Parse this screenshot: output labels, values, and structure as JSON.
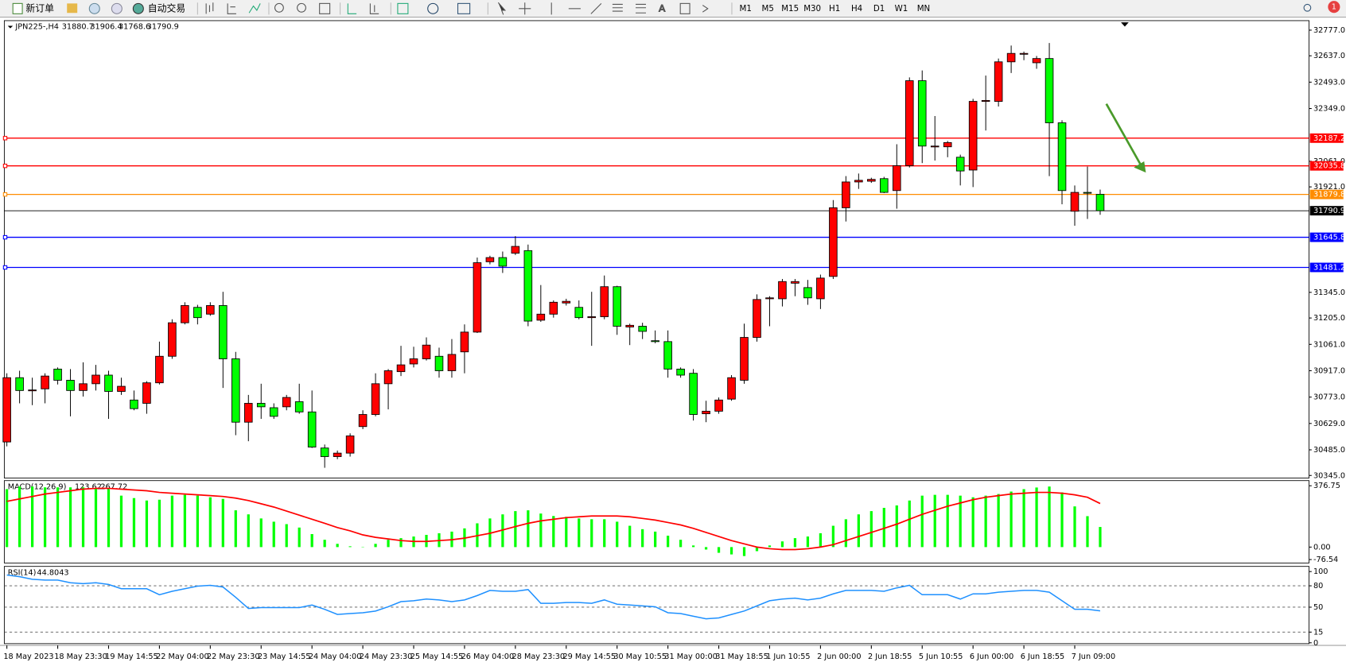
{
  "toolbar": {
    "new_order": "新订单",
    "auto_trade": "自动交易",
    "timeframes": [
      "M1",
      "M5",
      "M15",
      "M30",
      "H1",
      "H4",
      "D1",
      "W1",
      "MN"
    ],
    "notifications": 1
  },
  "chart_data": [
    {
      "type": "candlestick",
      "symbol": "JPN225-,H4",
      "categories": [
        "18 May 2023",
        null,
        null,
        null,
        "18 May 23:30",
        null,
        null,
        null,
        "19 May 14:55",
        null,
        null,
        null,
        "22 May 04:00",
        null,
        null,
        null,
        "22 May 23:30",
        null,
        null,
        null,
        "23 May 14:55",
        null,
        null,
        null,
        "24 May 04:00",
        null,
        null,
        null,
        "24 May 23:30",
        null,
        null,
        null,
        "25 May 14:55",
        null,
        null,
        null,
        "26 May 04:00",
        null,
        null,
        null,
        "28 May 23:30",
        null,
        null,
        null,
        "29 May 14:55",
        null,
        null,
        null,
        "30 May 10:55",
        null,
        null,
        null,
        "31 May 00:00",
        null,
        null,
        null,
        "31 May 18:55",
        null,
        null,
        null,
        "1 Jun 10:55",
        null,
        null,
        null,
        "2 Jun 00:00",
        null,
        null,
        null,
        "2 Jun 18:55",
        null,
        null,
        null,
        "5 Jun 10:55",
        null,
        null,
        null,
        "6 Jun 00:00",
        null,
        null,
        null,
        "6 Jun 18:55",
        null,
        null,
        null,
        "7 Jun 09:00",
        null,
        null
      ],
      "open": [
        30528,
        30879,
        30809,
        30818,
        30926,
        30865,
        30809,
        30846,
        30893,
        30804,
        30757,
        30739,
        30851,
        30996,
        31179,
        31263,
        31226,
        31273,
        30982,
        30636,
        30739,
        30715,
        30720,
        30748,
        30692,
        30495,
        30448,
        30467,
        30612,
        30678,
        30846,
        30912,
        30954,
        30982,
        30996,
        30917,
        31020,
        31128,
        31512,
        31535,
        31559,
        31573,
        31193,
        31226,
        31287,
        31263,
        31207,
        31212,
        31376,
        31156,
        31160,
        31081,
        31076,
        30926,
        30903,
        30682,
        30696,
        30762,
        30865,
        31099,
        31310,
        31310,
        31395,
        31371,
        31310,
        31432,
        31807,
        31948,
        31952,
        31966,
        31901,
        32037,
        32501,
        32140,
        32140,
        32083,
        32013,
        32388,
        32388,
        32604,
        32646,
        32599,
        32622,
        32271,
        31788,
        31891,
        31880.7
      ],
      "high": [
        30903,
        30917,
        30879,
        30903,
        30935,
        30926,
        30963,
        30949,
        30917,
        30879,
        30809,
        30860,
        31076,
        31198,
        31291,
        31277,
        31291,
        31348,
        31020,
        30785,
        30846,
        30739,
        30785,
        30846,
        30809,
        30514,
        30481,
        30575,
        30701,
        30903,
        30926,
        31053,
        31048,
        31099,
        31043,
        31090,
        31170,
        31535,
        31545,
        31568,
        31652,
        31606,
        31385,
        31301,
        31310,
        31301,
        31348,
        31437,
        31381,
        31174,
        31179,
        31137,
        31137,
        30935,
        30926,
        30753,
        30771,
        30893,
        31174,
        31334,
        31324,
        31418,
        31418,
        31413,
        31442,
        31849,
        31980,
        31994,
        31971,
        31976,
        32154,
        32519,
        32557,
        32308,
        32172,
        32097,
        32402,
        32529,
        32622,
        32693,
        32660,
        32636,
        32707,
        32285,
        31929,
        32032,
        31906.4
      ],
      "low": [
        30504,
        30739,
        30729,
        30739,
        30842,
        30668,
        30776,
        30809,
        30654,
        30785,
        30701,
        30682,
        30842,
        30982,
        31170,
        31170,
        31217,
        30823,
        30565,
        30532,
        30654,
        30654,
        30701,
        30682,
        30495,
        30387,
        30434,
        30448,
        30598,
        30668,
        30706,
        30888,
        30935,
        30973,
        30879,
        30879,
        30903,
        31123,
        31498,
        31451,
        31549,
        31160,
        31184,
        31207,
        31273,
        31198,
        31053,
        31198,
        31113,
        31057,
        31090,
        31067,
        30879,
        30879,
        30645,
        30636,
        30682,
        30753,
        30846,
        31076,
        31160,
        31268,
        31324,
        31277,
        31254,
        31418,
        31732,
        31910,
        31943,
        31887,
        31802,
        32027,
        32051,
        32065,
        32083,
        31929,
        31920,
        32229,
        32360,
        32543,
        32613,
        32566,
        31980,
        31826,
        31709,
        31746,
        31768.6
      ],
      "close": [
        30879,
        30809,
        30812,
        30888,
        30865,
        30809,
        30846,
        30893,
        30804,
        30832,
        30710,
        30851,
        30996,
        31179,
        31273,
        31207,
        31273,
        30982,
        30636,
        30739,
        30720,
        30668,
        30771,
        30692,
        30500,
        30448,
        30467,
        30561,
        30678,
        30846,
        30917,
        30949,
        30982,
        31057,
        30917,
        31006,
        31128,
        31507,
        31535,
        31488,
        31596,
        31188,
        31226,
        31291,
        31296,
        31207,
        31212,
        31376,
        31160,
        31165,
        31132,
        31076,
        30926,
        30893,
        30678,
        30696,
        30757,
        30879,
        31099,
        31306,
        31315,
        31404,
        31404,
        31315,
        31423,
        31807,
        31948,
        31957,
        31962,
        31891,
        32037,
        32501,
        32144,
        32144,
        32163,
        32008,
        32388,
        32393,
        32604,
        32650,
        32650,
        32622,
        32271,
        31901,
        31891,
        31887,
        31790.9
      ],
      "up_color": "#ff0000",
      "down_color": "#00ff00",
      "ylim": [
        30331,
        32829
      ],
      "yticks": [
        {
          "value": 32777,
          "label": "32777.0"
        },
        {
          "value": 32637,
          "label": "32637.0"
        },
        {
          "value": 32493,
          "label": "32493.0"
        },
        {
          "value": 32349,
          "label": "32349.0"
        },
        {
          "value": 32061,
          "label": "32061.0"
        },
        {
          "value": 31921,
          "label": "31921.0"
        },
        {
          "value": 31345,
          "label": "31345.0"
        },
        {
          "value": 31205,
          "label": "31205.0"
        },
        {
          "value": 31061,
          "label": "31061.0"
        },
        {
          "value": 30917,
          "label": "30917.0"
        },
        {
          "value": 30773,
          "label": "30773.0"
        },
        {
          "value": 30629,
          "label": "30629.0"
        },
        {
          "value": 30485,
          "label": "30485.0"
        },
        {
          "value": 30345,
          "label": "30345.0"
        }
      ],
      "levels": [
        {
          "value": 32187.2,
          "color": "#ff0000"
        },
        {
          "value": 32035.8,
          "color": "#ff0000"
        },
        {
          "value": 31879.8,
          "color": "#ff8c00"
        },
        {
          "value": 31645.8,
          "color": "#0000ff"
        },
        {
          "value": 31481.2,
          "color": "#0000ff"
        }
      ],
      "price_line_color": "#000000"
    },
    {
      "type": "macd",
      "title": "MACD(12,26,9)",
      "histogram": {
        "color": "#00ff00",
        "values": [
          356,
          372,
          372,
          367,
          367,
          367,
          367,
          361,
          356,
          316,
          301,
          286,
          291,
          316,
          321,
          316,
          306,
          296,
          226,
          201,
          176,
          156,
          141,
          120,
          80,
          45,
          20,
          5,
          2,
          20,
          45,
          55,
          65,
          75,
          85,
          95,
          115,
          146,
          176,
          201,
          221,
          226,
          206,
          191,
          186,
          176,
          171,
          171,
          156,
          131,
          110,
          95,
          70,
          45,
          10,
          -15,
          -35,
          -45,
          -55,
          -25,
          10,
          35,
          55,
          65,
          85,
          131,
          171,
          201,
          221,
          241,
          256,
          286,
          316,
          321,
          321,
          316,
          306,
          316,
          326,
          341,
          356,
          366,
          372,
          336,
          250,
          190,
          123.62
        ]
      },
      "signal": {
        "color": "#ff0000",
        "values": [
          281,
          296,
          311,
          326,
          336,
          346,
          356,
          361,
          361,
          356,
          351,
          346,
          336,
          331,
          326,
          321,
          316,
          311,
          301,
          286,
          266,
          246,
          221,
          196,
          171,
          146,
          120,
          100,
          75,
          60,
          50,
          40,
          35,
          35,
          40,
          45,
          55,
          70,
          85,
          105,
          126,
          146,
          161,
          171,
          181,
          186,
          191,
          191,
          191,
          186,
          176,
          166,
          151,
          136,
          115,
          90,
          65,
          40,
          20,
          0,
          -10,
          -15,
          -15,
          -10,
          0,
          15,
          40,
          65,
          90,
          115,
          141,
          171,
          201,
          226,
          251,
          271,
          291,
          306,
          316,
          326,
          331,
          336,
          336,
          331,
          321,
          306,
          267.72
        ]
      },
      "ylim": [
        -97.6,
        408.4
      ],
      "yticks": [
        376.75,
        {
          "value": 0,
          "label": "0.00"
        },
        -76.54
      ]
    },
    {
      "type": "rsi",
      "title": "RSI(14)",
      "color": "#1e90ff",
      "values": [
        95.2,
        92.8,
        89.2,
        88.0,
        88.0,
        84.3,
        83.1,
        84.3,
        81.9,
        75.9,
        75.9,
        75.9,
        67.5,
        72.3,
        75.9,
        79.5,
        80.7,
        78.3,
        63.9,
        48.2,
        49.4,
        49.4,
        49.4,
        49.4,
        53.0,
        47.0,
        39.8,
        41.0,
        42.2,
        44.6,
        50.6,
        57.8,
        59.0,
        61.4,
        60.2,
        57.8,
        60.2,
        66.3,
        73.5,
        72.3,
        72.3,
        74.7,
        55.4,
        55.4,
        56.6,
        56.6,
        55.4,
        60.2,
        54.2,
        53.0,
        51.8,
        50.6,
        42.2,
        41.0,
        37.3,
        33.7,
        34.9,
        39.8,
        44.6,
        51.8,
        59.0,
        61.4,
        62.7,
        60.2,
        62.7,
        68.7,
        73.5,
        73.5,
        73.5,
        72.3,
        77.1,
        80.7,
        67.5,
        67.5,
        67.5,
        61.4,
        68.7,
        68.7,
        71.1,
        72.3,
        73.5,
        73.5,
        71.1,
        59.0,
        47.0,
        47.0,
        44.8043
      ],
      "ylim": [
        0,
        100
      ],
      "yticks": [
        100,
        80,
        50,
        15,
        0
      ],
      "levels": [
        80,
        50,
        15
      ]
    }
  ]
}
